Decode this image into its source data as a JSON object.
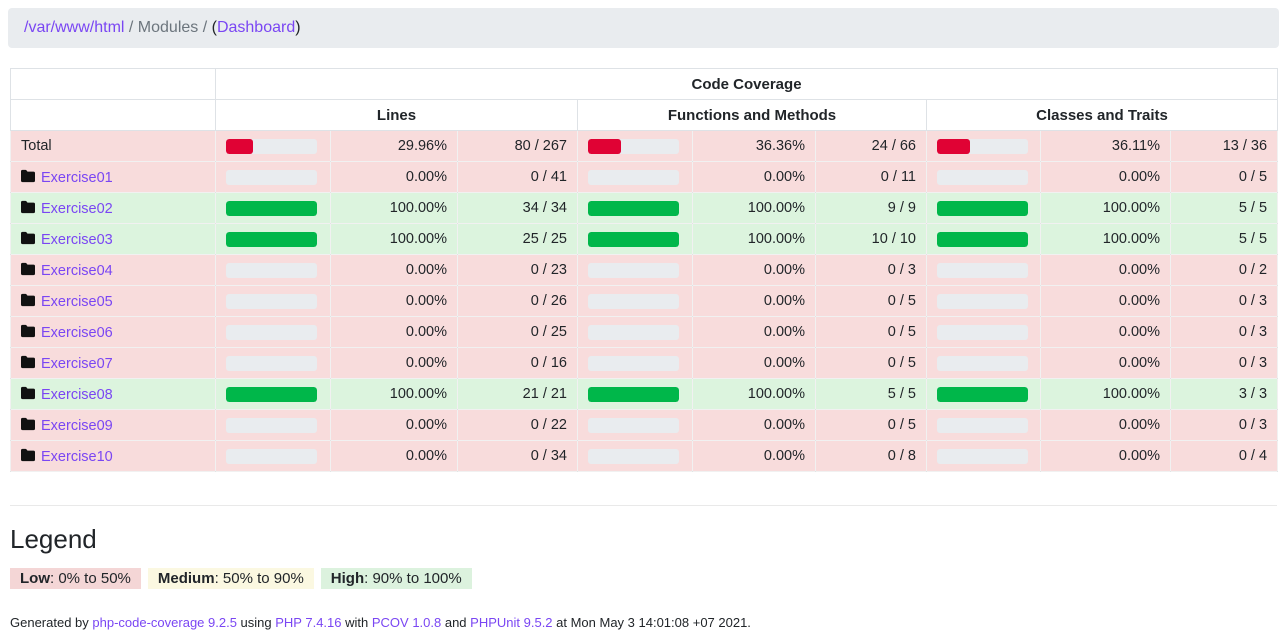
{
  "breadcrumb": {
    "parts": [
      {
        "text": "/var/www/html",
        "type": "link"
      },
      {
        "text": " / ",
        "type": "sep"
      },
      {
        "text": "Modules",
        "type": "muted"
      },
      {
        "text": " / ",
        "type": "sep"
      },
      {
        "text": "(",
        "type": "text"
      },
      {
        "text": "Dashboard",
        "type": "link"
      },
      {
        "text": ")",
        "type": "text"
      }
    ]
  },
  "table": {
    "group_header": "Code Coverage",
    "columns": [
      "Lines",
      "Functions and Methods",
      "Classes and Traits"
    ],
    "rows": [
      {
        "name": "Total",
        "icon": false,
        "status": "low",
        "metrics": [
          {
            "value": 29.96,
            "pct": "29.96%",
            "ratio": "80 / 267"
          },
          {
            "value": 36.36,
            "pct": "36.36%",
            "ratio": "24 / 66"
          },
          {
            "value": 36.11,
            "pct": "36.11%",
            "ratio": "13 / 36"
          }
        ]
      },
      {
        "name": "Exercise01",
        "icon": true,
        "status": "low",
        "metrics": [
          {
            "value": 0,
            "pct": "0.00%",
            "ratio": "0 / 41"
          },
          {
            "value": 0,
            "pct": "0.00%",
            "ratio": "0 / 11"
          },
          {
            "value": 0,
            "pct": "0.00%",
            "ratio": "0 / 5"
          }
        ]
      },
      {
        "name": "Exercise02",
        "icon": true,
        "status": "high",
        "metrics": [
          {
            "value": 100,
            "pct": "100.00%",
            "ratio": "34 / 34"
          },
          {
            "value": 100,
            "pct": "100.00%",
            "ratio": "9 / 9"
          },
          {
            "value": 100,
            "pct": "100.00%",
            "ratio": "5 / 5"
          }
        ]
      },
      {
        "name": "Exercise03",
        "icon": true,
        "status": "high",
        "metrics": [
          {
            "value": 100,
            "pct": "100.00%",
            "ratio": "25 / 25"
          },
          {
            "value": 100,
            "pct": "100.00%",
            "ratio": "10 / 10"
          },
          {
            "value": 100,
            "pct": "100.00%",
            "ratio": "5 / 5"
          }
        ]
      },
      {
        "name": "Exercise04",
        "icon": true,
        "status": "low",
        "metrics": [
          {
            "value": 0,
            "pct": "0.00%",
            "ratio": "0 / 23"
          },
          {
            "value": 0,
            "pct": "0.00%",
            "ratio": "0 / 3"
          },
          {
            "value": 0,
            "pct": "0.00%",
            "ratio": "0 / 2"
          }
        ]
      },
      {
        "name": "Exercise05",
        "icon": true,
        "status": "low",
        "metrics": [
          {
            "value": 0,
            "pct": "0.00%",
            "ratio": "0 / 26"
          },
          {
            "value": 0,
            "pct": "0.00%",
            "ratio": "0 / 5"
          },
          {
            "value": 0,
            "pct": "0.00%",
            "ratio": "0 / 3"
          }
        ]
      },
      {
        "name": "Exercise06",
        "icon": true,
        "status": "low",
        "metrics": [
          {
            "value": 0,
            "pct": "0.00%",
            "ratio": "0 / 25"
          },
          {
            "value": 0,
            "pct": "0.00%",
            "ratio": "0 / 5"
          },
          {
            "value": 0,
            "pct": "0.00%",
            "ratio": "0 / 3"
          }
        ]
      },
      {
        "name": "Exercise07",
        "icon": true,
        "status": "low",
        "metrics": [
          {
            "value": 0,
            "pct": "0.00%",
            "ratio": "0 / 16"
          },
          {
            "value": 0,
            "pct": "0.00%",
            "ratio": "0 / 5"
          },
          {
            "value": 0,
            "pct": "0.00%",
            "ratio": "0 / 3"
          }
        ]
      },
      {
        "name": "Exercise08",
        "icon": true,
        "status": "high",
        "metrics": [
          {
            "value": 100,
            "pct": "100.00%",
            "ratio": "21 / 21"
          },
          {
            "value": 100,
            "pct": "100.00%",
            "ratio": "5 / 5"
          },
          {
            "value": 100,
            "pct": "100.00%",
            "ratio": "3 / 3"
          }
        ]
      },
      {
        "name": "Exercise09",
        "icon": true,
        "status": "low",
        "metrics": [
          {
            "value": 0,
            "pct": "0.00%",
            "ratio": "0 / 22"
          },
          {
            "value": 0,
            "pct": "0.00%",
            "ratio": "0 / 5"
          },
          {
            "value": 0,
            "pct": "0.00%",
            "ratio": "0 / 3"
          }
        ]
      },
      {
        "name": "Exercise10",
        "icon": true,
        "status": "low",
        "metrics": [
          {
            "value": 0,
            "pct": "0.00%",
            "ratio": "0 / 34"
          },
          {
            "value": 0,
            "pct": "0.00%",
            "ratio": "0 / 8"
          },
          {
            "value": 0,
            "pct": "0.00%",
            "ratio": "0 / 4"
          }
        ]
      }
    ]
  },
  "legend": {
    "title": "Legend",
    "items": [
      {
        "label": "Low",
        "range": ": 0% to 50%",
        "bg": "#f4d6d6"
      },
      {
        "label": "Medium",
        "range": ": 50% to 90%",
        "bg": "#fbf8e1"
      },
      {
        "label": "High",
        "range": ": 90% to 100%",
        "bg": "#dcf2de"
      }
    ]
  },
  "footer": {
    "parts": [
      {
        "text": "Generated by ",
        "type": "text"
      },
      {
        "text": "php-code-coverage 9.2.5",
        "type": "link"
      },
      {
        "text": " using ",
        "type": "text"
      },
      {
        "text": "PHP 7.4.16",
        "type": "link"
      },
      {
        "text": " with ",
        "type": "text"
      },
      {
        "text": "PCOV 1.0.8",
        "type": "link"
      },
      {
        "text": " and ",
        "type": "text"
      },
      {
        "text": "PHPUnit 9.5.2",
        "type": "link"
      },
      {
        "text": " at Mon May 3 14:01:08 +07 2021.",
        "type": "text"
      }
    ]
  },
  "colors": {
    "link": "#7a46f3",
    "muted": "#6c757d",
    "border": "#dee2e6",
    "breadcrumb_bg": "#e9ecef",
    "bar_track": "#e9ecef",
    "bar_low": "#e00234",
    "bar_high": "#00b74a",
    "row_low_bg": "#f8dcdc",
    "row_high_bg": "#dcf4de"
  }
}
